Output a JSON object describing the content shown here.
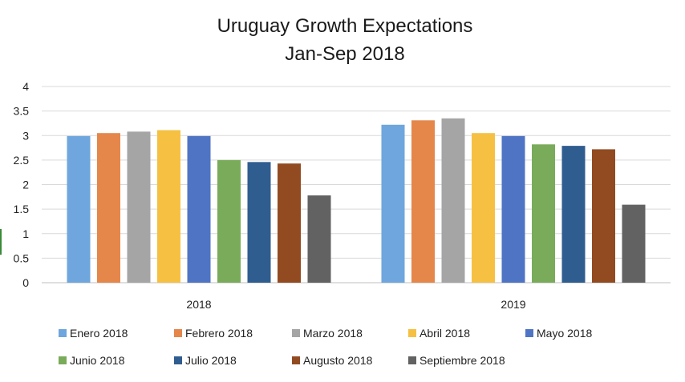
{
  "chart_data": {
    "type": "bar",
    "title": "Uruguay Growth Expectations",
    "subtitle": "Jan-Sep 2018",
    "xlabel": "",
    "ylabel": "",
    "categories": [
      "2018",
      "2019"
    ],
    "ylim": [
      0,
      4
    ],
    "yticks": [
      "0",
      "0.5",
      "1",
      "1.5",
      "2",
      "2.5",
      "3",
      "3.5",
      "4"
    ],
    "grid": true,
    "legend_position": "bottom",
    "series": [
      {
        "name": "Enero 2018",
        "color": "#6ea6dd",
        "values": [
          2.99,
          3.22
        ]
      },
      {
        "name": "Febrero 2018",
        "color": "#e5864a",
        "values": [
          3.05,
          3.31
        ]
      },
      {
        "name": "Marzo 2018",
        "color": "#a5a5a5",
        "values": [
          3.08,
          3.35
        ]
      },
      {
        "name": "Abril 2018",
        "color": "#f6c142",
        "values": [
          3.11,
          3.05
        ]
      },
      {
        "name": "Mayo 2018",
        "color": "#4f74c4",
        "values": [
          2.99,
          2.99
        ]
      },
      {
        "name": "Junio 2018",
        "color": "#79ab5a",
        "values": [
          2.5,
          2.82
        ]
      },
      {
        "name": "Julio 2018",
        "color": "#305d8f",
        "values": [
          2.46,
          2.79
        ]
      },
      {
        "name": "Augusto 2018",
        "color": "#924b21",
        "values": [
          2.43,
          2.72
        ]
      },
      {
        "name": "Septiembre 2018",
        "color": "#626262",
        "values": [
          1.78,
          1.59
        ]
      }
    ]
  }
}
